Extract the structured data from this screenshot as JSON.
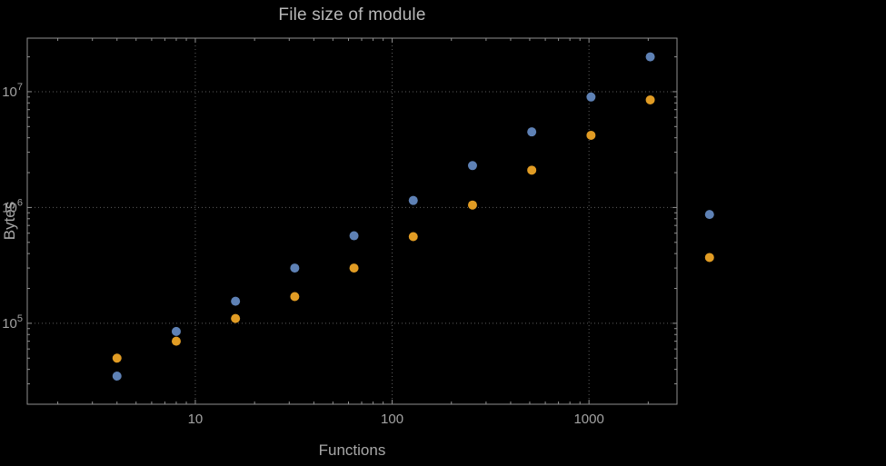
{
  "chart_data": {
    "type": "scatter",
    "title": "File size of module",
    "xlabel": "Functions",
    "ylabel": "Bytes",
    "x_scale": "log",
    "y_scale": "log",
    "grid": "dotted",
    "legend": "none",
    "x": [
      4,
      8,
      16,
      32,
      64,
      128,
      256,
      512,
      1024,
      2048,
      4096
    ],
    "series": [
      {
        "name": "blue",
        "color": "#5e81b5",
        "values": [
          35000,
          85000,
          155000,
          300000,
          570000,
          1150000,
          2300000,
          4500000,
          9000000,
          20000000,
          870000
        ]
      },
      {
        "name": "orange",
        "color": "#e19c24",
        "values": [
          50000,
          70000,
          110000,
          170000,
          300000,
          560000,
          1050000,
          2100000,
          4200000,
          8500000,
          370000
        ]
      }
    ],
    "x_ticks": [
      {
        "value": 10,
        "label": "10"
      },
      {
        "value": 100,
        "label": "100"
      },
      {
        "value": 1000,
        "label": "1000"
      }
    ],
    "y_ticks": [
      {
        "value": 100000,
        "base": "10",
        "exp": "5"
      },
      {
        "value": 1000000,
        "base": "10",
        "exp": "6"
      },
      {
        "value": 10000000,
        "base": "10",
        "exp": "7"
      }
    ],
    "x_range": [
      1.4,
      2800
    ],
    "y_range": [
      20000,
      29000000
    ]
  },
  "colors": {
    "background": "#000000",
    "frame": "#8f8f8f",
    "grid": "#5d5d5d",
    "text": "#a2a2a2",
    "title": "#b8b8b8"
  }
}
